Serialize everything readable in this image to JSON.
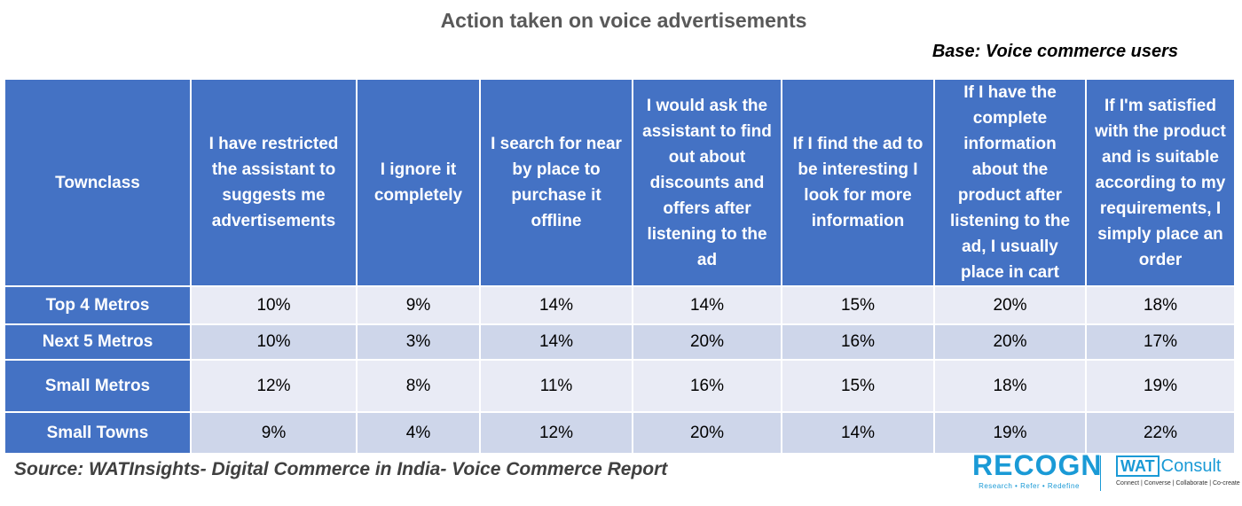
{
  "title": "Action taken on voice advertisements",
  "base_note": "Base: Voice commerce users",
  "source": "Source: WATInsights- Digital Commerce in India- Voice Commerce Report",
  "logos": {
    "recogn": "RECOGN",
    "recogn_tagline": "Research • Refer • Redefine",
    "wat": "WAT",
    "consult": "Consult",
    "consult_tagline": "Connect | Converse | Collaborate | Co-create"
  },
  "colors": {
    "header_fill": "#4472c4",
    "row_light": "#e9ebf5",
    "row_dark": "#ced6ea",
    "brand": "#1a9ad6"
  },
  "chart_data": {
    "type": "table",
    "columns": [
      "Townclass",
      "I have restricted the assistant to suggests me advertisements",
      "I ignore it completely",
      "I search for near by place to purchase it offline",
      "I would ask the assistant to find out about discounts and offers after listening to the ad",
      "If I find the ad to be interesting I look for more information",
      "If I have the complete information about the product after listening to the ad, I usually place in cart",
      "If I'm satisfied with the product and is suitable according to my requirements, I simply place an order"
    ],
    "rows": [
      [
        "Top 4 Metros",
        "10%",
        "9%",
        "14%",
        "14%",
        "15%",
        "20%",
        "18%"
      ],
      [
        "Next 5 Metros",
        "10%",
        "3%",
        "14%",
        "20%",
        "16%",
        "20%",
        "17%"
      ],
      [
        "Small Metros",
        "12%",
        "8%",
        "11%",
        "16%",
        "15%",
        "18%",
        "19%"
      ],
      [
        "Small Towns",
        "9%",
        "4%",
        "12%",
        "20%",
        "14%",
        "19%",
        "22%"
      ]
    ]
  }
}
